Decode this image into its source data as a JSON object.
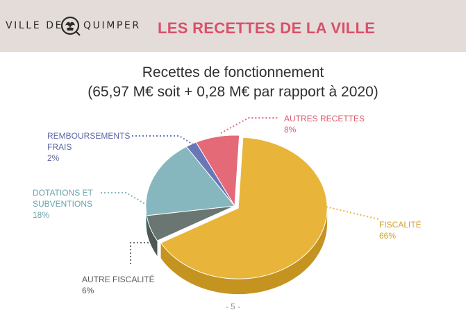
{
  "header": {
    "logo_left": "VILLE DE",
    "logo_right": "QUIMPER",
    "title": "LES RECETTES DE LA VILLE"
  },
  "chart_data": {
    "type": "pie",
    "title": "Recettes de fonctionnement",
    "subtitle": "(65,97 M€ soit + 0,28 M€ par rapport à 2020)",
    "slices": [
      {
        "name": "FISCALITÉ",
        "value": 66,
        "percent_label": "66%",
        "color": "#e8b53a",
        "side": "#c59320"
      },
      {
        "name": "AUTRE FISCALITÉ",
        "value": 6,
        "percent_label": "6%",
        "color": "#6a7671",
        "side": "#4e5854"
      },
      {
        "name": "DOTATIONS ET SUBVENTIONS",
        "value": 18,
        "percent_label": "18%",
        "color": "#86b7be",
        "side": "#5f949b"
      },
      {
        "name": "REMBOURSEMENTS FRAIS",
        "value": 2,
        "percent_label": "2%",
        "color": "#6a76b8",
        "side": "#4e5a96"
      },
      {
        "name": "AUTRES RECETTES",
        "value": 8,
        "percent_label": "8%",
        "color": "#e46a78",
        "side": "#c14c5a"
      }
    ],
    "labels": {
      "fiscalite": {
        "line1": "FISCALITÉ",
        "pct": "66%",
        "color": "#d3a22b"
      },
      "autre_fiscalite": {
        "line1": "AUTRE FISCALITÉ",
        "pct": "6%",
        "color": "#555d5a"
      },
      "dotations": {
        "line1": "DOTATIONS ET",
        "line2": "SUBVENTIONS",
        "pct": "18%",
        "color": "#6aa3ab"
      },
      "remboursements": {
        "line1": "REMBOURSEMENTS",
        "line2": "FRAIS",
        "pct": "2%",
        "color": "#5c67a6"
      },
      "autres_recettes": {
        "line1": "AUTRES RECETTES",
        "pct": "8%",
        "color": "#dc5a6b"
      }
    }
  },
  "footer": {
    "page": "- 5 -"
  }
}
